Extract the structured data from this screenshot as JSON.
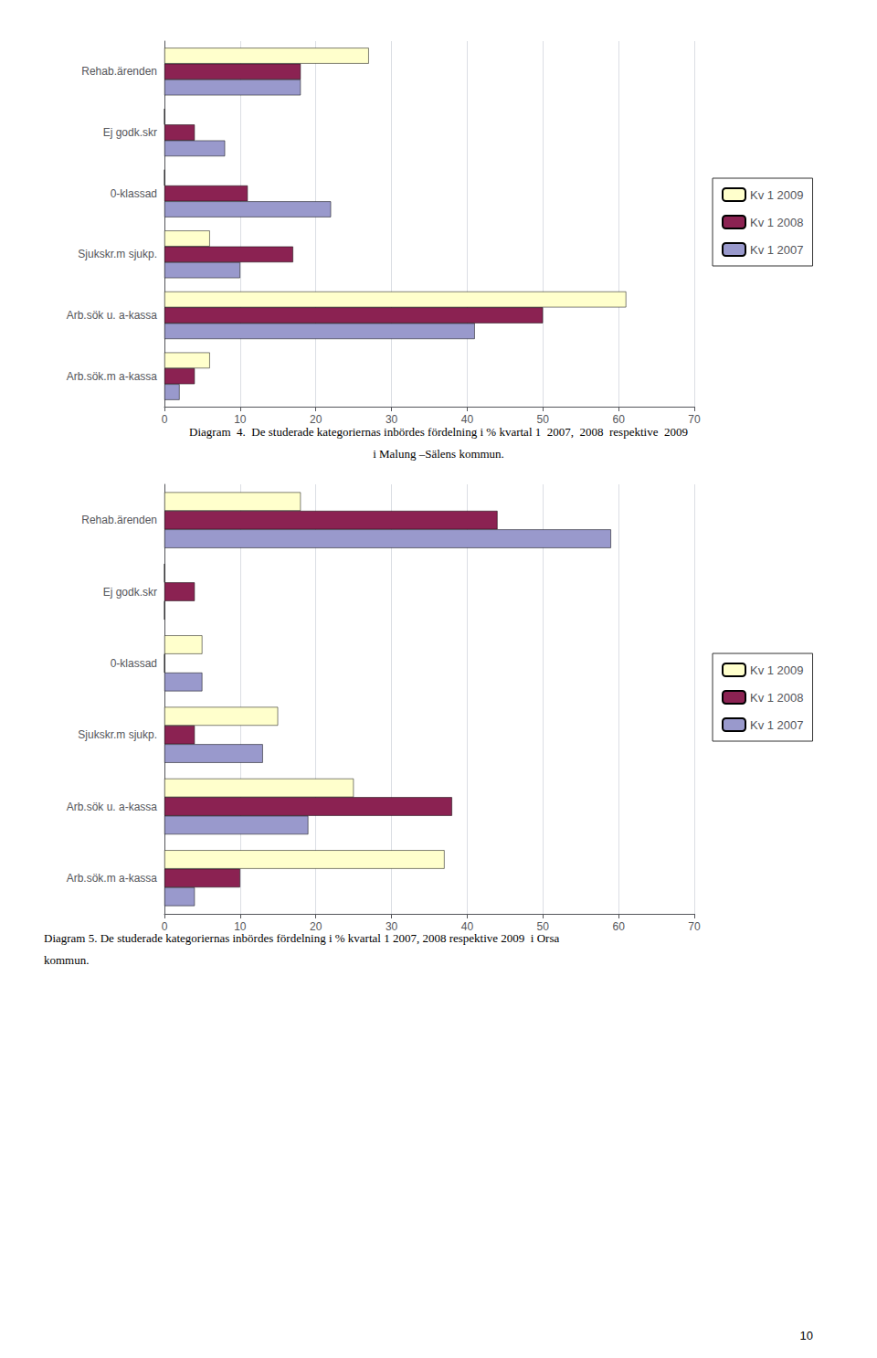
{
  "chart_data": [
    {
      "type": "bar",
      "orientation": "horizontal",
      "categories": [
        "Arb.sök.m a-kassa",
        "Arb.sök u. a-kassa",
        "Sjukskr.m sjukp.",
        "0-klassad",
        "Ej godk.skr",
        "Rehab.ärenden"
      ],
      "series": [
        {
          "name": "Kv 1 2009",
          "color": "#FFFFCC",
          "values": [
            6,
            61,
            6,
            0,
            0,
            27
          ]
        },
        {
          "name": "Kv 1 2008",
          "color": "#8B2252",
          "values": [
            4,
            50,
            17,
            11,
            4,
            18
          ]
        },
        {
          "name": "Kv 1 2007",
          "color": "#9999CC",
          "values": [
            2,
            41,
            10,
            22,
            8,
            18
          ]
        }
      ],
      "xlim": [
        0,
        70
      ],
      "xticks": [
        0,
        10,
        20,
        30,
        40,
        50,
        60,
        70
      ],
      "grid": true,
      "legend": "right",
      "annotations": [
        "Diagram  4.  De studerade kategoriernas inbördes fördelning i % kvartal 1  2007,  2008  respektive  2009",
        "i Malung –Sälens kommun."
      ]
    },
    {
      "type": "bar",
      "orientation": "horizontal",
      "categories": [
        "Arb.sök.m a-kassa",
        "Arb.sök u. a-kassa",
        "Sjukskr.m sjukp.",
        "0-klassad",
        "Ej godk.skr",
        "Rehab.ärenden"
      ],
      "series": [
        {
          "name": "Kv 1 2009",
          "color": "#FFFFCC",
          "values": [
            37,
            25,
            15,
            5,
            0,
            18
          ]
        },
        {
          "name": "Kv 1 2008",
          "color": "#8B2252",
          "values": [
            10,
            38,
            4,
            0,
            4,
            44
          ]
        },
        {
          "name": "Kv 1 2007",
          "color": "#9999CC",
          "values": [
            4,
            19,
            13,
            5,
            0,
            59
          ]
        }
      ],
      "xlim": [
        0,
        70
      ],
      "xticks": [
        0,
        10,
        20,
        30,
        40,
        50,
        60,
        70
      ],
      "grid": true,
      "legend": "right",
      "annotations": [
        "Diagram 5. De studerade kategoriernas inbördes fördelning i % kvartal 1 2007, 2008 respektive 2009  i Orsa",
        "kommun."
      ]
    }
  ],
  "annotations": [
    "10"
  ]
}
